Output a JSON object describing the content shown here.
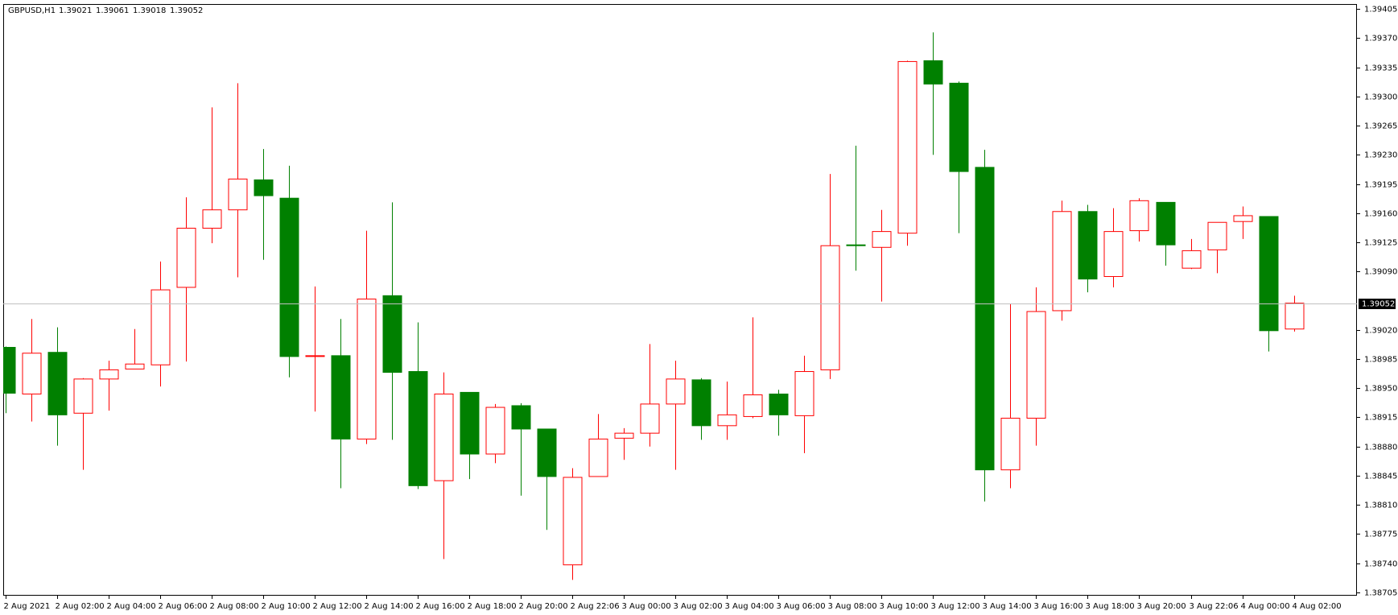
{
  "chart_data": {
    "type": "candlestick",
    "title": "GBPUSD,H1",
    "up_color": "#ff0000",
    "down_color": "#008000",
    "current_price": 1.39052,
    "categories": [
      "2 Aug 2021",
      null,
      "2 Aug 02:00",
      null,
      "2 Aug 04:00",
      null,
      "2 Aug 06:00",
      null,
      "2 Aug 08:00",
      null,
      "2 Aug 10:00",
      null,
      "2 Aug 12:00",
      null,
      "2 Aug 14:00",
      null,
      "2 Aug 16:00",
      null,
      "2 Aug 18:00",
      null,
      "2 Aug 20:00",
      null,
      "2 Aug 22:06",
      null,
      "3 Aug 00:00",
      null,
      "3 Aug 02:00",
      null,
      "3 Aug 04:00",
      null,
      "3 Aug 06:00",
      null,
      "3 Aug 08:00",
      null,
      "3 Aug 10:00",
      null,
      "3 Aug 12:00",
      null,
      "3 Aug 14:00",
      null,
      "3 Aug 16:00",
      null,
      "3 Aug 18:00",
      null,
      "3 Aug 20:00",
      null,
      "3 Aug 22:06",
      null,
      "4 Aug 00:00",
      null,
      "4 Aug 02:00"
    ],
    "open": [
      1.38999,
      1.38943,
      1.38993,
      1.3892,
      1.38961,
      1.38973,
      1.38978,
      1.39071,
      1.39142,
      1.39164,
      1.392,
      1.39178,
      1.38988,
      1.38989,
      1.38889,
      1.39061,
      1.3897,
      1.38839,
      1.38945,
      1.38871,
      1.38929,
      1.38901,
      1.38738,
      1.38844,
      1.3889,
      1.38896,
      1.38931,
      1.3896,
      1.38905,
      1.38916,
      1.38943,
      1.38917,
      1.38972,
      1.39122,
      1.39119,
      1.39136,
      1.39343,
      1.39316,
      1.39215,
      1.38852,
      1.38914,
      1.39043,
      1.39162,
      1.39084,
      1.39139,
      1.39173,
      1.39094,
      1.39116,
      1.3915,
      1.39156,
      1.39021
    ],
    "high": [
      1.39,
      1.39033,
      1.39023,
      1.38962,
      1.38983,
      1.39021,
      1.39102,
      1.39179,
      1.39287,
      1.39316,
      1.39237,
      1.39217,
      1.39072,
      1.39033,
      1.39139,
      1.39173,
      1.39029,
      1.38969,
      1.38945,
      1.38931,
      1.38932,
      1.38901,
      1.38854,
      1.38919,
      1.38902,
      1.39003,
      1.38983,
      1.38962,
      1.38958,
      1.39035,
      1.38948,
      1.38989,
      1.39207,
      1.39241,
      1.39164,
      1.39343,
      1.39377,
      1.39318,
      1.39236,
      1.39051,
      1.39071,
      1.39175,
      1.3917,
      1.39166,
      1.39178,
      1.39173,
      1.39129,
      1.39149,
      1.39168,
      1.39156,
      1.39061
    ],
    "low": [
      1.3892,
      1.3891,
      1.38881,
      1.38852,
      1.38923,
      1.38973,
      1.38952,
      1.38982,
      1.39124,
      1.39083,
      1.39104,
      1.38963,
      1.38922,
      1.3883,
      1.38883,
      1.38888,
      1.38829,
      1.38745,
      1.38841,
      1.3886,
      1.38821,
      1.3878,
      1.3872,
      1.38844,
      1.38864,
      1.3888,
      1.38852,
      1.38888,
      1.38888,
      1.38914,
      1.38893,
      1.38872,
      1.38961,
      1.39091,
      1.39054,
      1.39121,
      1.3923,
      1.39136,
      1.38814,
      1.3883,
      1.38881,
      1.39031,
      1.39065,
      1.39071,
      1.39126,
      1.39097,
      1.39093,
      1.39088,
      1.39129,
      1.38994,
      1.39018
    ],
    "close": [
      1.38944,
      1.38992,
      1.38918,
      1.38961,
      1.38972,
      1.38979,
      1.39068,
      1.39142,
      1.39164,
      1.39201,
      1.39181,
      1.38988,
      1.38989,
      1.38889,
      1.39057,
      1.38969,
      1.38833,
      1.38943,
      1.38871,
      1.38927,
      1.38901,
      1.38844,
      1.38843,
      1.38889,
      1.38896,
      1.38931,
      1.38961,
      1.38905,
      1.38918,
      1.38942,
      1.38918,
      1.3897,
      1.39121,
      1.39121,
      1.39138,
      1.39342,
      1.39315,
      1.3921,
      1.38852,
      1.38914,
      1.39042,
      1.39162,
      1.39081,
      1.39138,
      1.39175,
      1.39122,
      1.39115,
      1.39149,
      1.39157,
      1.39019,
      1.39052
    ],
    "ylim": [
      1.38701,
      1.39411
    ],
    "yticks": [
      1.39405,
      {
        "value": 1.3937,
        "label": "1.39370"
      },
      1.39335,
      {
        "value": 1.393,
        "label": "1.39300"
      },
      1.39265,
      {
        "value": 1.3923,
        "label": "1.39230"
      },
      1.39195,
      {
        "value": 1.3916,
        "label": "1.39160"
      },
      1.39125,
      {
        "value": 1.3909,
        "label": "1.39090"
      },
      {
        "value": 1.3902,
        "label": "1.39020"
      },
      1.38985,
      {
        "value": 1.3895,
        "label": "1.38950"
      },
      1.38915,
      {
        "value": 1.3888,
        "label": "1.38880"
      },
      1.38845,
      {
        "value": 1.3881,
        "label": "1.38810"
      },
      1.38775,
      {
        "value": 1.3874,
        "label": "1.38740"
      },
      1.38705
    ]
  }
}
